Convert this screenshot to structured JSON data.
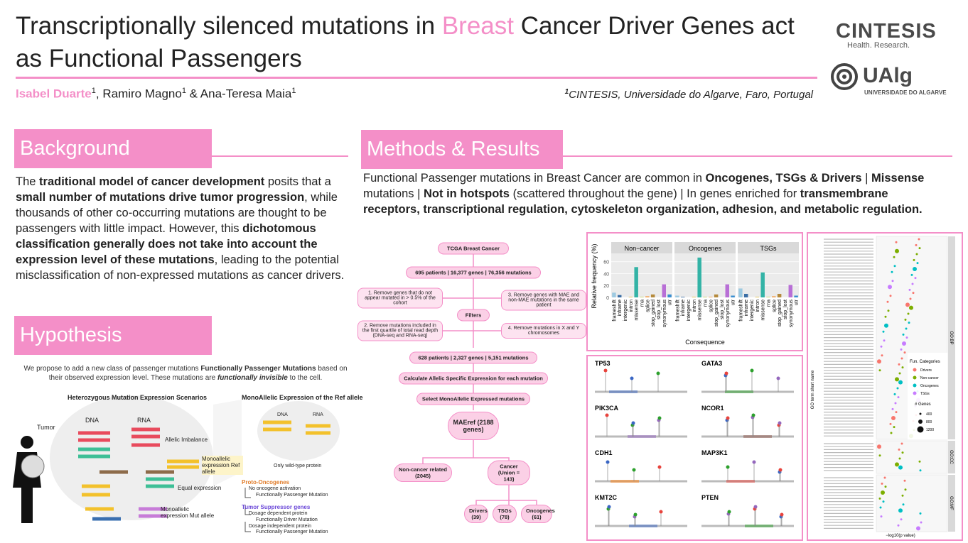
{
  "header": {
    "title": [
      {
        "text": "Transcriptionally silenced mutations in "
      },
      {
        "text": "Breast",
        "color": "#f48fc8"
      },
      {
        "text": " Cancer Driver Genes act as Functional Passengers"
      }
    ],
    "authors": [
      {
        "name": "Isabel Duarte",
        "sup": "1",
        "color": "#f48fc8"
      },
      {
        "name": ", Ramiro Magno",
        "sup": "1"
      },
      {
        "name": " & Ana-Teresa Maia",
        "sup": "1"
      }
    ],
    "affiliation": {
      "sup": "1",
      "text": "CINTESIS, Universidade do Algarve, Faro, Portugal"
    },
    "logos": {
      "cintesis": "CINTESIS",
      "cintesis_tag": "Health. Research.",
      "ualg": "UAlg",
      "ualg_tag": "UNIVERSIDADE DO ALGARVE"
    }
  },
  "background": {
    "heading": "Background",
    "paragraph": [
      {
        "text": "The "
      },
      {
        "text": "traditional model of cancer development",
        "bold": true
      },
      {
        "text": " posits that a "
      },
      {
        "text": "small number of mutations drive tumor progression",
        "bold": true
      },
      {
        "text": ", while thousands of other co-occurring mutations are thought to be passengers with little impact. However, this "
      },
      {
        "text": "dichotomous classification generally does not take into account the expression level of these mutations",
        "bold": true
      },
      {
        "text": ", leading to the potential misclassification of non-expressed mutations as cancer drivers."
      }
    ]
  },
  "hypothesis": {
    "heading": "Hypothesis",
    "intro": [
      {
        "text": "We propose to add a new class of passenger mutations "
      },
      {
        "text": "Functionally Passenger Mutations",
        "bold": true
      },
      {
        "text": " based on their observed expression level. These mutations are "
      },
      {
        "text": "functionally invisible",
        "bold": true,
        "italic": true
      },
      {
        "text": " to the cell."
      }
    ],
    "figure": {
      "left_title": "Heterozygous Mutation Expression Scenarios",
      "right_title": "MonoAllelic Expression of the Ref allele",
      "tumor": "Tumor",
      "dna": "DNA",
      "rna": "RNA",
      "dna2": "DNA",
      "rna2": "RNA",
      "allelic_imbalance": "Allelic Imbalance",
      "equal": "Equal expression",
      "mono_mut": "Monoallelic expression Mut allele",
      "mono_ref": "Monoallelic expression Ref allele",
      "wild_type": "Only wild-type protein",
      "proto": "Proto-Oncogenes",
      "proto_1": "No oncogene activation",
      "proto_2": "Functionally Passenger Mutation",
      "tsg": "Tumor Suppressor genes",
      "tsg_1": "Dosage dependent protein",
      "tsg_2": "Functionally Driver Mutation",
      "tsg_3": "Dosage independent protein",
      "tsg_4": "Functionally Passenger Mutation"
    }
  },
  "methods": {
    "heading": "Methods & Results",
    "intro": [
      {
        "text": "Functional Passenger mutations in Breast Cancer are common in "
      },
      {
        "text": "Oncogenes, TSGs & Drivers",
        "bold": true
      },
      {
        "text": " | "
      },
      {
        "text": "Missense",
        "bold": true
      },
      {
        "text": " mutations | "
      },
      {
        "text": "Not in hotspots",
        "bold": true
      },
      {
        "text": " (scattered throughout the gene) | In genes enriched for "
      },
      {
        "text": "transmembrane receptors, transcriptional regulation, cytoskeleton organization, adhesion, and metabolic regulation.",
        "bold": true
      }
    ],
    "flowchart": {
      "start": "TCGA Breast Cancer",
      "cohort": "695 patients | 16,377 genes | 76,356 mutations",
      "filters": "Filters",
      "f1": "1. Remove genes that do not appear mutated in > 0.5% of the cohort",
      "f2": "2. Remove mutations included in the first quartile of total read depth (DNA-seq and RNA-seq)",
      "f3": "3. Remove genes with MAE and non-MAE mutations in the same patient",
      "f4": "4. Remove mutations in X and Y chromosomes",
      "filtered": "628 patients | 2,327 genes | 5,151 mutations",
      "ase": "Calculate Allelic Specific Expression for each mutation",
      "mae": "Select MonoAllelic Expressed mutations",
      "maeref": "MAEref (2188 genes)",
      "noncancer": "Non-cancer related (2045)",
      "cancer": "Cancer (Union = 143)",
      "drivers": "Drivers (39)",
      "tsgs": "TSGs (78)",
      "oncogenes": "Oncogenes (61)"
    },
    "consequence_chart": {
      "type": "bar",
      "y_label": "Relative frequency (%)",
      "x_label": "Consequence",
      "categories": [
        "frameshift",
        "inframe",
        "intergenic",
        "intron",
        "missense",
        "rna",
        "splice",
        "stop_gained",
        "stop_lost",
        "synonymous",
        "utr"
      ],
      "colors": [
        "#9ecae1",
        "#3b6ea5",
        "#7fb8a8",
        "#e7c34b",
        "#33b3a6",
        "#c9d66a",
        "#f2a65a",
        "#b58a3c",
        "#d9b3d9",
        "#b86fd6",
        "#3a8fd0"
      ],
      "panels": [
        {
          "name": "Non−cancer",
          "values": [
            8,
            4,
            0,
            1,
            51,
            1,
            2,
            5,
            0,
            22,
            5
          ]
        },
        {
          "name": "Oncogenes",
          "values": [
            3,
            1,
            0,
            1,
            67,
            1,
            1,
            5,
            0,
            22,
            3
          ]
        },
        {
          "name": "TSGs",
          "values": [
            15,
            6,
            0,
            1,
            42,
            1,
            2,
            6,
            0,
            21,
            3
          ]
        }
      ],
      "ylim": [
        0,
        74
      ],
      "yticks": [
        0,
        20,
        40,
        60
      ]
    },
    "lollipop_genes": [
      "TP53",
      "GATA3",
      "PIK3CA",
      "NCOR1",
      "CDH1",
      "MAP3K1",
      "KMT2C",
      "PTEN"
    ],
    "go_plot": {
      "y_label": "GO term short name",
      "x_label": "−log10(p value)",
      "facets": [
        "GO:BP",
        "GO:CC",
        "GO:MF"
      ],
      "legend_title": "Fun. Categories",
      "legend": [
        {
          "name": "Drivers",
          "color": "#f8766d"
        },
        {
          "name": "Non-cancer",
          "color": "#7cae00"
        },
        {
          "name": "Oncogenes",
          "color": "#00bfc4"
        },
        {
          "name": "TSGs",
          "color": "#c77cff"
        }
      ],
      "size_title": "# Genes",
      "sizes": [
        400,
        800,
        1200
      ]
    }
  }
}
